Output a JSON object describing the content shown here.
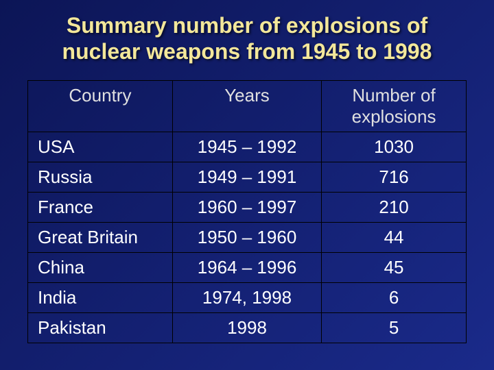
{
  "slide": {
    "background_gradient": {
      "from": "#0c1556",
      "to": "#1a2a8a",
      "angle": "135deg"
    },
    "title": {
      "text": "Summary number of explosions of nuclear weapons from 1945 to 1998",
      "color": "#f3e79a",
      "fontsize": 32
    },
    "table": {
      "border_color": "#000000",
      "header_color": "#e0e0e0",
      "cell_color": "#ffffff",
      "header_fontsize": 26,
      "cell_fontsize": 26,
      "columns": [
        {
          "key": "country",
          "label": "Country",
          "align": "center"
        },
        {
          "key": "years",
          "label": "Years",
          "align": "center"
        },
        {
          "key": "num",
          "label": "Number of explosions",
          "align": "center"
        }
      ],
      "rows": [
        {
          "country": "USA",
          "years": "1945 – 1992",
          "num": "1030"
        },
        {
          "country": "Russia",
          "years": "1949 – 1991",
          "num": "716"
        },
        {
          "country": "France",
          "years": "1960 – 1997",
          "num": "210"
        },
        {
          "country": "Great Britain",
          "years": "1950 – 1960",
          "num": "44"
        },
        {
          "country": "China",
          "years": "1964 – 1996",
          "num": "45"
        },
        {
          "country": "India",
          "years": "1974, 1998",
          "num": "6"
        },
        {
          "country": "Pakistan",
          "years": "1998",
          "num": "5"
        }
      ]
    }
  }
}
